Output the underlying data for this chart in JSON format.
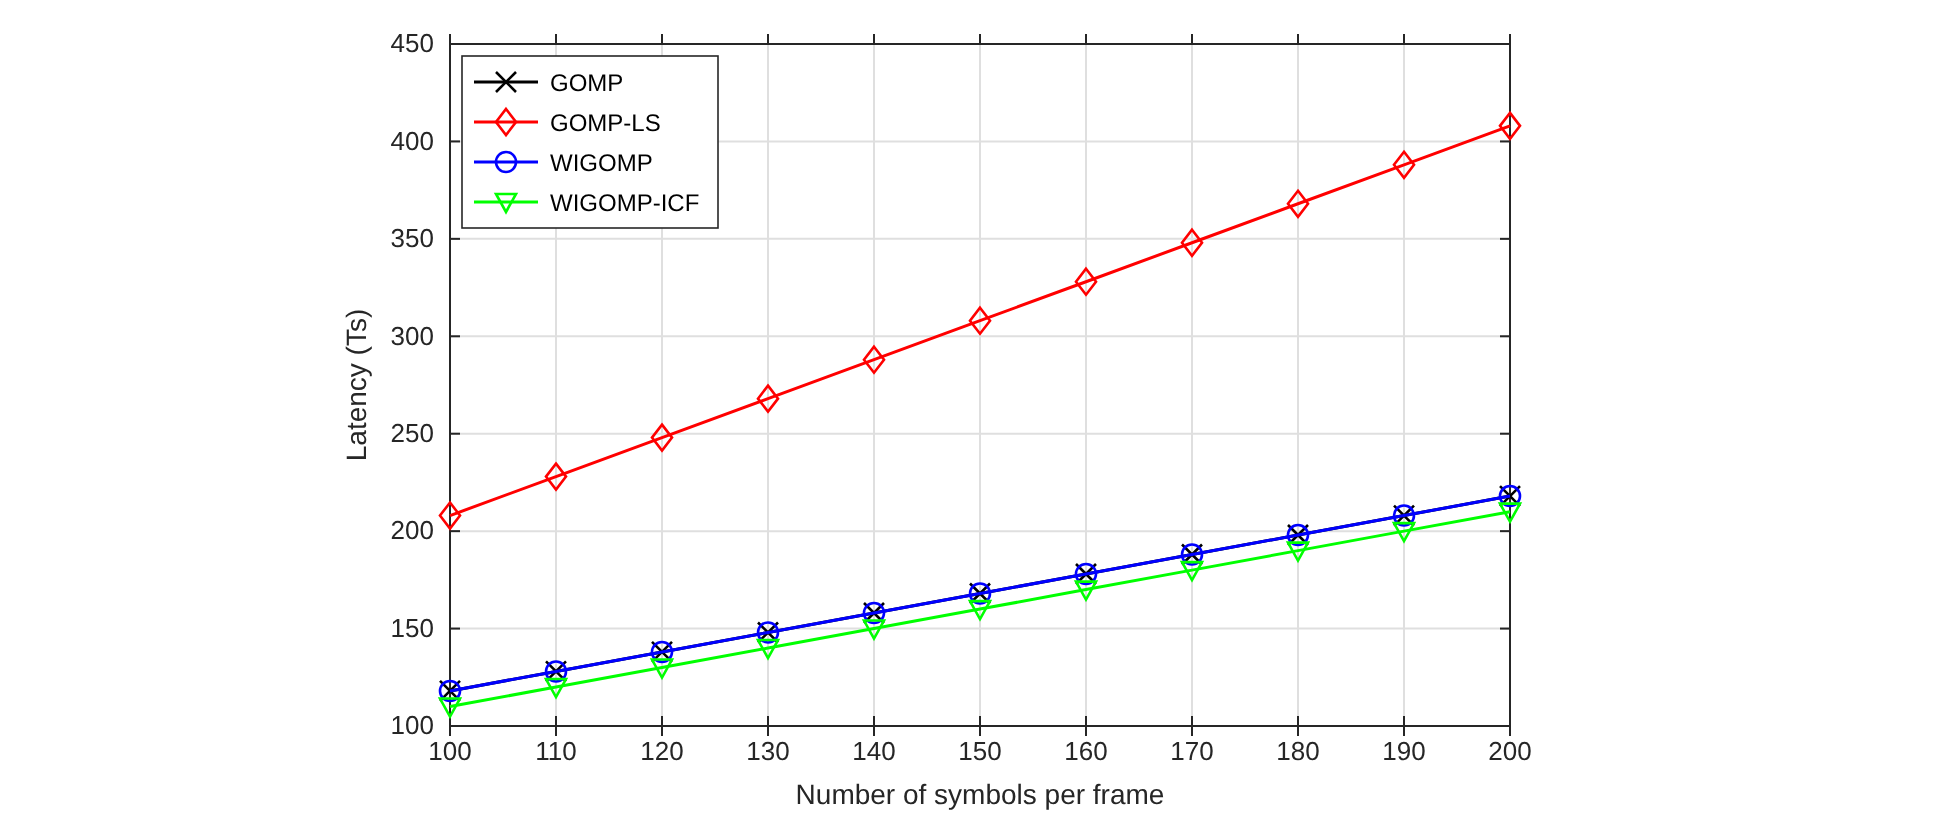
{
  "chart_data": {
    "type": "line",
    "xlabel": "Number of symbols per frame",
    "ylabel": "Latency (Ts)",
    "x": [
      100,
      110,
      120,
      130,
      140,
      150,
      160,
      170,
      180,
      190,
      200
    ],
    "xlim": [
      100,
      200
    ],
    "xticks": [
      100,
      110,
      120,
      130,
      140,
      150,
      160,
      170,
      180,
      190,
      200
    ],
    "ylim": [
      100,
      450
    ],
    "yticks": [
      100,
      150,
      200,
      250,
      300,
      350,
      400,
      450
    ],
    "grid": true,
    "legend": "top left",
    "line_style": "solid",
    "series": [
      {
        "name": "GOMP",
        "color": "#000000",
        "marker": "cross",
        "values": [
          118,
          128,
          138,
          148,
          158,
          168,
          178,
          188,
          198,
          208,
          218
        ]
      },
      {
        "name": "GOMP-LS",
        "color": "#ff0000",
        "marker": "diamond",
        "values": [
          208,
          228,
          248,
          268,
          288,
          308,
          328,
          348,
          368,
          388,
          408
        ]
      },
      {
        "name": "WIGOMP",
        "color": "#0000ff",
        "marker": "circle",
        "values": [
          118,
          128,
          138,
          148,
          158,
          168,
          178,
          188,
          198,
          208,
          218
        ]
      },
      {
        "name": "WIGOMP-ICF",
        "color": "#00ff00",
        "marker": "triangle",
        "values": [
          110,
          120,
          130,
          140,
          150,
          160,
          170,
          180,
          190,
          200,
          210
        ]
      }
    ]
  }
}
